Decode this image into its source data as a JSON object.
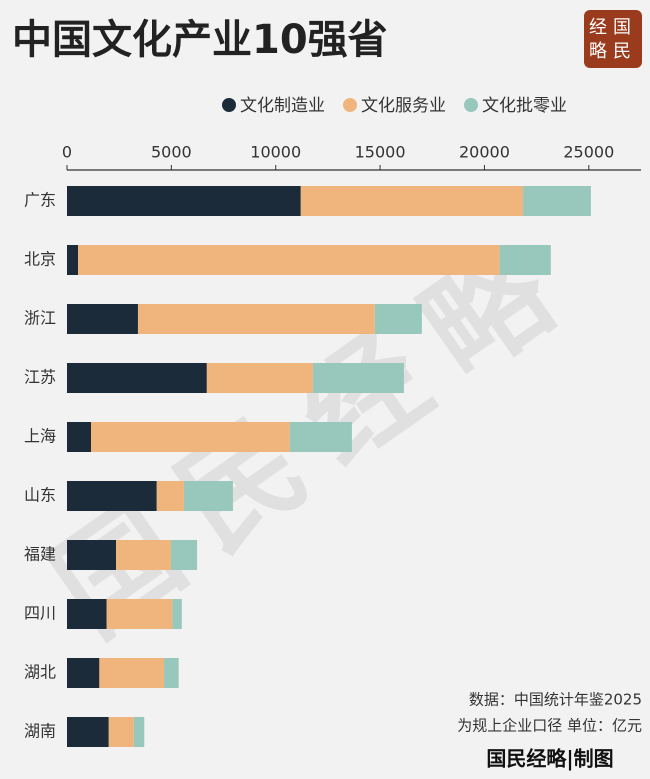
{
  "chart_data": {
    "type": "stacked-barh",
    "title": "中国文化产业10强省",
    "categories": [
      "广东",
      "北京",
      "浙江",
      "江苏",
      "上海",
      "山东",
      "福建",
      "四川",
      "湖北",
      "湖南"
    ],
    "series": [
      {
        "name": "文化制造业",
        "color": "#1c2b3a",
        "values": [
          11200,
          530,
          3400,
          6700,
          1150,
          4300,
          2350,
          1900,
          1550,
          2000
        ]
      },
      {
        "name": "文化服务业",
        "color": "#f0b57d",
        "values": [
          10650,
          20200,
          11350,
          5080,
          9530,
          1300,
          2630,
          3150,
          3100,
          1200
        ]
      },
      {
        "name": "文化批零业",
        "color": "#97c8bb",
        "values": [
          3250,
          2450,
          2250,
          4360,
          2970,
          2350,
          1250,
          450,
          700,
          500
        ]
      }
    ],
    "xlim": [
      0,
      27500
    ],
    "xticks": [
      0,
      5000,
      10000,
      15000,
      20000,
      25000
    ],
    "grid": false,
    "legend": "top-right",
    "annotations": [
      "数据：中国统计年鉴2025",
      "为规上企业口径 单位：亿元"
    ]
  },
  "logo": [
    "经国",
    "略民"
  ],
  "watermark": "国民经略",
  "footer": "国民经略|制图"
}
